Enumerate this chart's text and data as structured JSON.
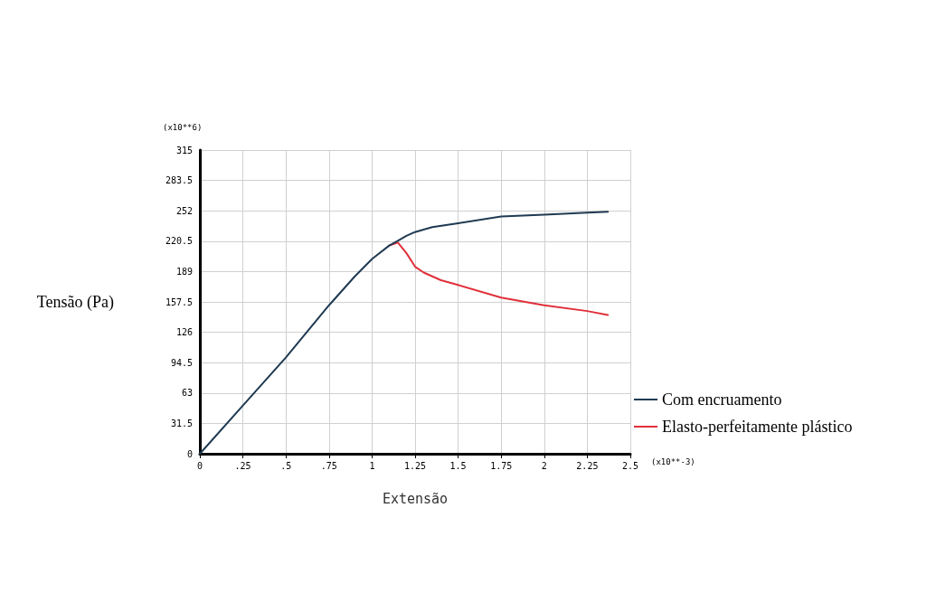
{
  "chart_data": {
    "type": "line",
    "xlabel": "Extensão",
    "ylabel": "Tensão (Pa)",
    "annotations": [
      "(x10**6)",
      "(x10**-3)"
    ],
    "xlim": [
      0,
      2.5
    ],
    "xticks": [
      0,
      {
        "value": 0.25,
        "label": ".25"
      },
      {
        "value": 0.5,
        "label": ".5"
      },
      {
        "value": 0.75,
        "label": ".75"
      },
      1,
      1.25,
      1.5,
      1.75,
      2,
      2.25,
      2.5
    ],
    "ylim": [
      0,
      315
    ],
    "yticks": [
      0,
      31.5,
      63,
      94.5,
      126,
      157.5,
      189,
      220.5,
      252,
      283.5,
      315
    ],
    "grid": true,
    "legend": "bottom right",
    "marker": "none",
    "line_style": "solid",
    "series": [
      {
        "name": "Com encruamento",
        "color": "#1f3a52",
        "x": [
          0,
          0.25,
          0.5,
          0.75,
          0.9,
          1,
          1.1,
          1.15,
          1.2,
          1.25,
          1.35,
          1.5,
          1.75,
          2,
          2.25,
          2.37
        ],
        "values": [
          0,
          50,
          100,
          154,
          184,
          202,
          216,
          221,
          226,
          230,
          235,
          239,
          246,
          248,
          250,
          251
        ]
      },
      {
        "name": "Elasto-perfeitamente plástico",
        "color": "#e0303a",
        "x": [
          1.1,
          1.15,
          1.2,
          1.25,
          1.3,
          1.4,
          1.5,
          1.75,
          2,
          2.25,
          2.37
        ],
        "values": [
          216,
          219,
          208,
          194,
          188,
          180,
          175,
          162,
          154,
          148,
          144
        ]
      }
    ]
  }
}
